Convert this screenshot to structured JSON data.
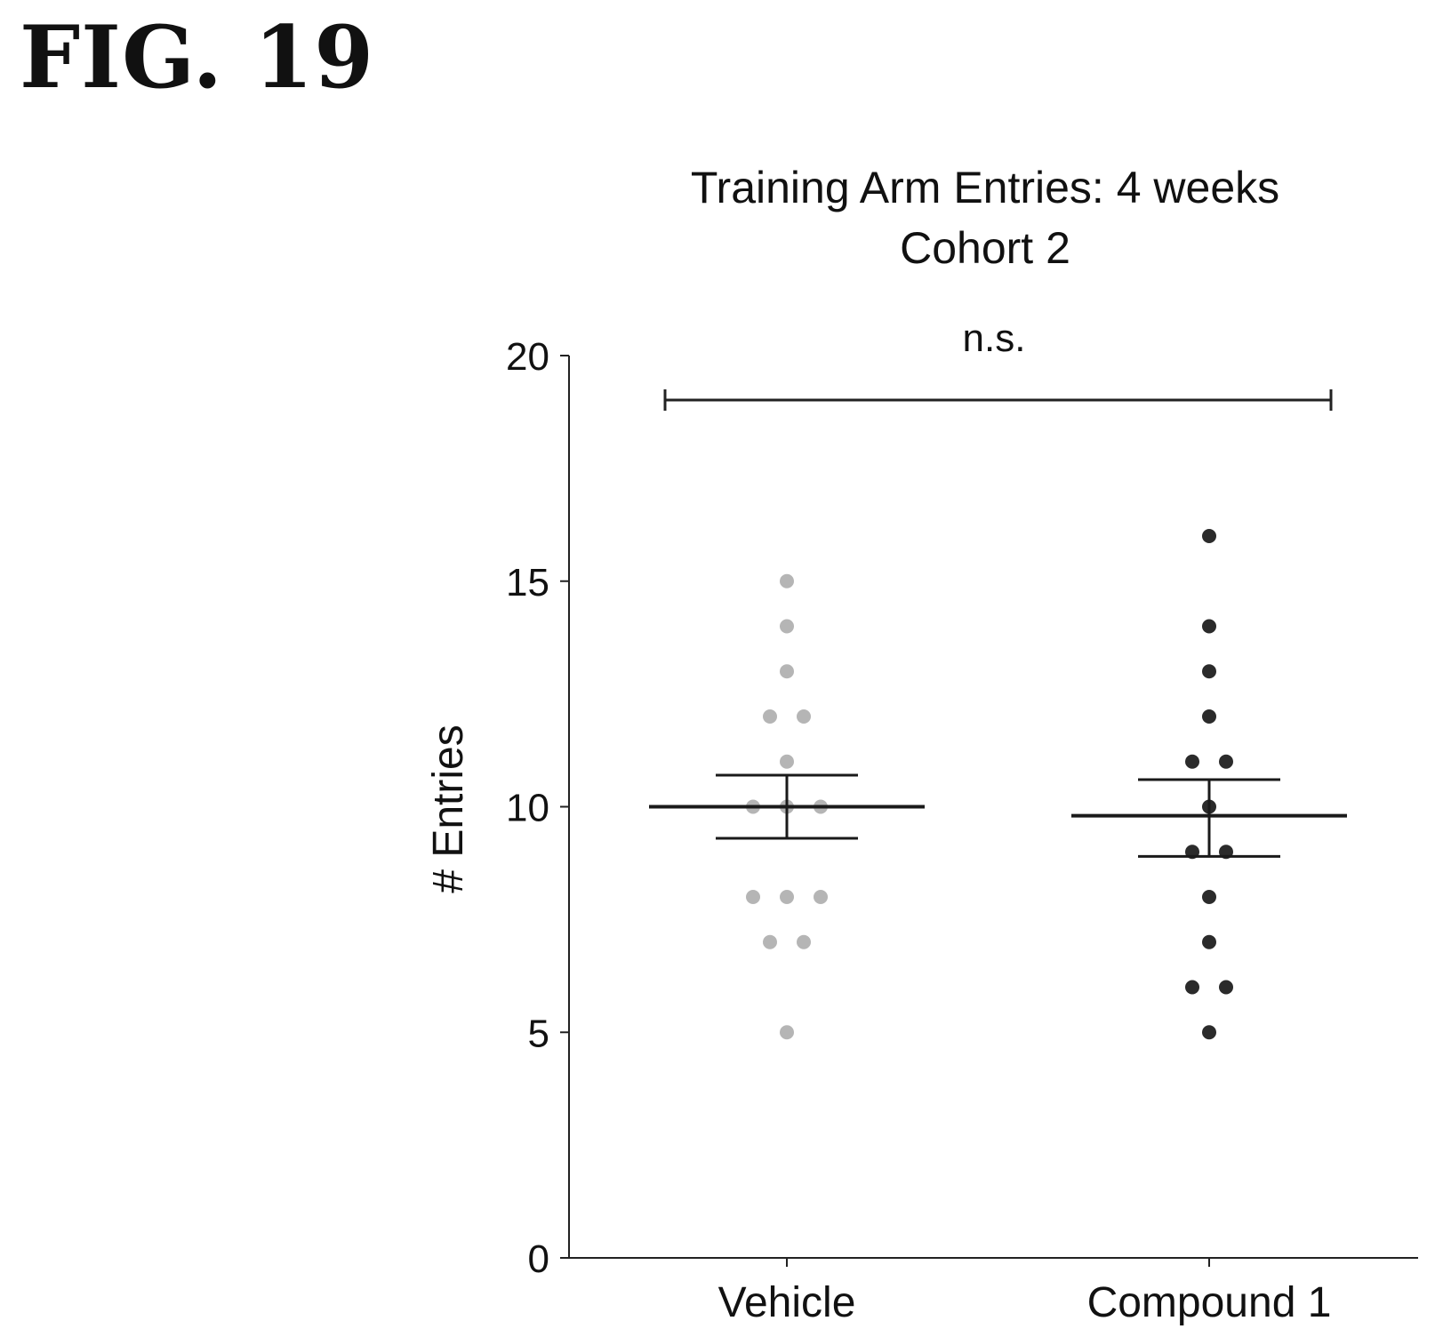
{
  "figure_label": "FIG. 19",
  "chart_data": {
    "type": "scatter",
    "title": "Training Arm Entries: 4 weeks",
    "subtitle": "Cohort 2",
    "ylabel": "# Entries",
    "xlabel": "",
    "categories": [
      "Vehicle",
      "Compound 1"
    ],
    "ylim": [
      0,
      20
    ],
    "yticks": [
      0,
      5,
      10,
      15,
      20
    ],
    "grid": false,
    "significance": {
      "label": "n.s.",
      "from": "Vehicle",
      "to": "Compound 1"
    },
    "series": [
      {
        "category": "Vehicle",
        "color": "#b5b5b5",
        "mean": 10,
        "sem_low": 9.3,
        "sem_high": 10.7,
        "values": [
          15,
          14,
          13,
          12,
          12,
          11,
          10,
          10,
          10,
          8,
          8,
          8,
          7,
          7,
          5
        ]
      },
      {
        "category": "Compound 1",
        "color": "#2b2b2b",
        "mean": 9.8,
        "sem_low": 8.9,
        "sem_high": 10.6,
        "values": [
          16,
          14,
          13,
          12,
          11,
          11,
          10,
          9,
          9,
          8,
          7,
          6,
          6,
          5
        ]
      }
    ]
  }
}
